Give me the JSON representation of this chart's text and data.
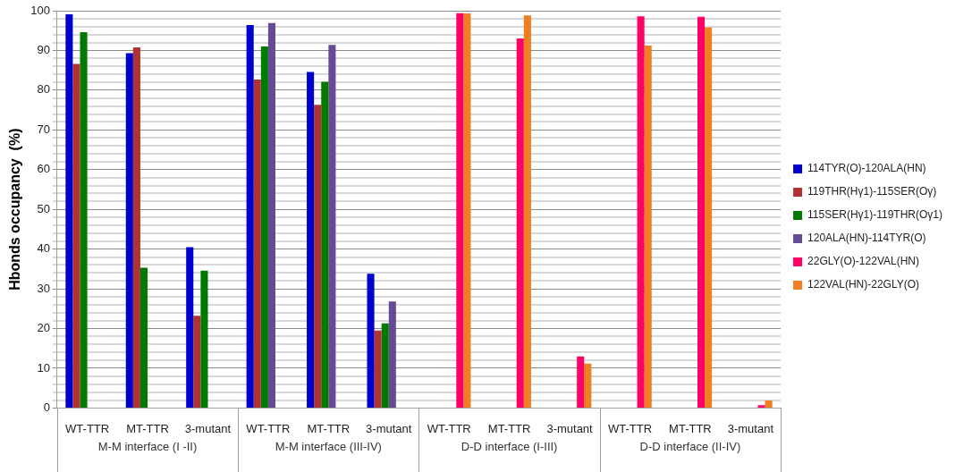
{
  "chart_data": {
    "type": "bar",
    "ylabel": "Hbonds occupancy  (%)",
    "categories": [
      "WT-TTR",
      "MT-TTR",
      "3-mutant",
      "WT-TTR",
      "MT-TTR",
      "3-mutant",
      "WT-TTR",
      "MT-TTR",
      "3-mutant",
      "WT-TTR",
      "MT-TTR",
      "3-mutant"
    ],
    "annotations": [
      "M-M interface (I -II)",
      "M-M interface (III-IV)",
      "D-D interface (I-III)",
      "D-D interface (II-IV)"
    ],
    "series": [
      {
        "name": "114TYR(O)-120ALA(HN)",
        "color": "#0000cc",
        "values": [
          99.1,
          89.3,
          40.5,
          96.4,
          84.6,
          33.8,
          null,
          null,
          null,
          null,
          null,
          null
        ]
      },
      {
        "name": "119THR(Hγ1)-115SER(Oγ)",
        "color": "#b03333",
        "values": [
          86.6,
          90.8,
          23.2,
          82.7,
          76.3,
          19.5,
          null,
          null,
          null,
          null,
          null,
          null
        ]
      },
      {
        "name": "115SER(Hγ1)-119THR(Oγ1)",
        "color": "#007a00",
        "values": [
          94.6,
          35.3,
          34.6,
          91.0,
          82.1,
          21.3,
          null,
          null,
          null,
          null,
          null,
          null
        ]
      },
      {
        "name": "120ALA(HN)-114TYR(O)",
        "color": "#674a94",
        "values": [
          null,
          null,
          null,
          96.9,
          91.4,
          26.8,
          null,
          null,
          null,
          null,
          null,
          null
        ]
      },
      {
        "name": "22GLY(O)-122VAL(HN)",
        "color": "#ff0066",
        "values": [
          null,
          null,
          null,
          null,
          null,
          null,
          99.4,
          93.0,
          13.0,
          98.6,
          98.5,
          0.7
        ]
      },
      {
        "name": "122VAL(HN)-22GLY(O)",
        "color": "#ee7f22",
        "values": [
          null,
          null,
          null,
          null,
          null,
          null,
          99.3,
          98.8,
          11.2,
          91.2,
          95.8,
          1.9
        ]
      }
    ],
    "ylim": [
      0,
      100
    ],
    "yticks": [
      0,
      {
        "value": 2,
        "label": null
      },
      {
        "value": 4,
        "label": null
      },
      {
        "value": 6,
        "label": null
      },
      {
        "value": 8,
        "label": null
      },
      10,
      {
        "value": 12,
        "label": null
      },
      {
        "value": 14,
        "label": null
      },
      {
        "value": 16,
        "label": null
      },
      {
        "value": 18,
        "label": null
      },
      20,
      {
        "value": 22,
        "label": null
      },
      {
        "value": 24,
        "label": null
      },
      {
        "value": 26,
        "label": null
      },
      {
        "value": 28,
        "label": null
      },
      30,
      {
        "value": 32,
        "label": null
      },
      {
        "value": 34,
        "label": null
      },
      {
        "value": 36,
        "label": null
      },
      {
        "value": 38,
        "label": null
      },
      40,
      {
        "value": 42,
        "label": null
      },
      {
        "value": 44,
        "label": null
      },
      {
        "value": 46,
        "label": null
      },
      {
        "value": 48,
        "label": null
      },
      50,
      {
        "value": 52,
        "label": null
      },
      {
        "value": 54,
        "label": null
      },
      {
        "value": 56,
        "label": null
      },
      {
        "value": 58,
        "label": null
      },
      60,
      {
        "value": 62,
        "label": null
      },
      {
        "value": 64,
        "label": null
      },
      {
        "value": 66,
        "label": null
      },
      {
        "value": 68,
        "label": null
      },
      70,
      {
        "value": 72,
        "label": null
      },
      {
        "value": 74,
        "label": null
      },
      {
        "value": 76,
        "label": null
      },
      {
        "value": 78,
        "label": null
      },
      80,
      {
        "value": 82,
        "label": null
      },
      {
        "value": 84,
        "label": null
      },
      {
        "value": 86,
        "label": null
      },
      {
        "value": 88,
        "label": null
      },
      90,
      {
        "value": 92,
        "label": null
      },
      {
        "value": 94,
        "label": null
      },
      {
        "value": 96,
        "label": null
      },
      {
        "value": 98,
        "label": null
      },
      100
    ],
    "grid": "y",
    "legend": "right"
  }
}
